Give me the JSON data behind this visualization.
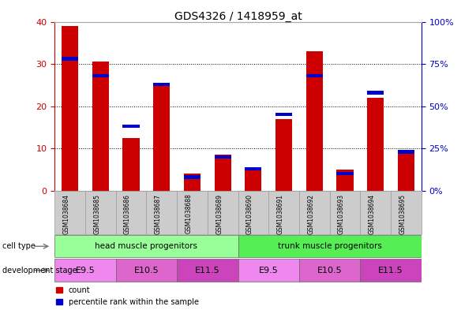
{
  "title": "GDS4326 / 1418959_at",
  "samples": [
    "GSM1038684",
    "GSM1038685",
    "GSM1038686",
    "GSM1038687",
    "GSM1038688",
    "GSM1038689",
    "GSM1038690",
    "GSM1038691",
    "GSM1038692",
    "GSM1038693",
    "GSM1038694",
    "GSM1038695"
  ],
  "count_values": [
    39,
    30.5,
    12.5,
    25,
    4,
    8.5,
    5.5,
    17,
    33,
    5,
    22,
    9
  ],
  "percentile_pct": [
    78,
    68,
    38,
    63,
    8,
    20,
    13,
    45,
    68,
    10,
    58,
    23
  ],
  "count_color": "#cc0000",
  "percentile_color": "#0000cc",
  "ylim_left": [
    0,
    40
  ],
  "ylim_right": [
    0,
    100
  ],
  "yticks_left": [
    0,
    10,
    20,
    30,
    40
  ],
  "yticks_right": [
    0,
    25,
    50,
    75,
    100
  ],
  "cell_type_groups": [
    {
      "label": "head muscle progenitors",
      "start": 0,
      "end": 6,
      "color": "#99ff99"
    },
    {
      "label": "trunk muscle progenitors",
      "start": 6,
      "end": 12,
      "color": "#55ee55"
    }
  ],
  "dev_stage_groups": [
    {
      "label": "E9.5",
      "start": 0,
      "end": 2,
      "color": "#ee88ee"
    },
    {
      "label": "E10.5",
      "start": 2,
      "end": 4,
      "color": "#dd66cc"
    },
    {
      "label": "E11.5",
      "start": 4,
      "end": 6,
      "color": "#cc44bb"
    },
    {
      "label": "E9.5",
      "start": 6,
      "end": 8,
      "color": "#ee88ee"
    },
    {
      "label": "E10.5",
      "start": 8,
      "end": 10,
      "color": "#dd66cc"
    },
    {
      "label": "E11.5",
      "start": 10,
      "end": 12,
      "color": "#cc44bb"
    }
  ],
  "legend_count_label": "count",
  "legend_pct_label": "percentile rank within the sample",
  "count_color_legend": "#cc0000",
  "percentile_color_legend": "#0000cc",
  "background_color": "#ffffff",
  "plot_bg_color": "#ffffff",
  "sample_bg_color": "#cccccc",
  "axis_label_color_left": "#cc0000",
  "axis_label_color_right": "#0000cc",
  "cell_type_label": "cell type",
  "dev_stage_label": "development stage"
}
